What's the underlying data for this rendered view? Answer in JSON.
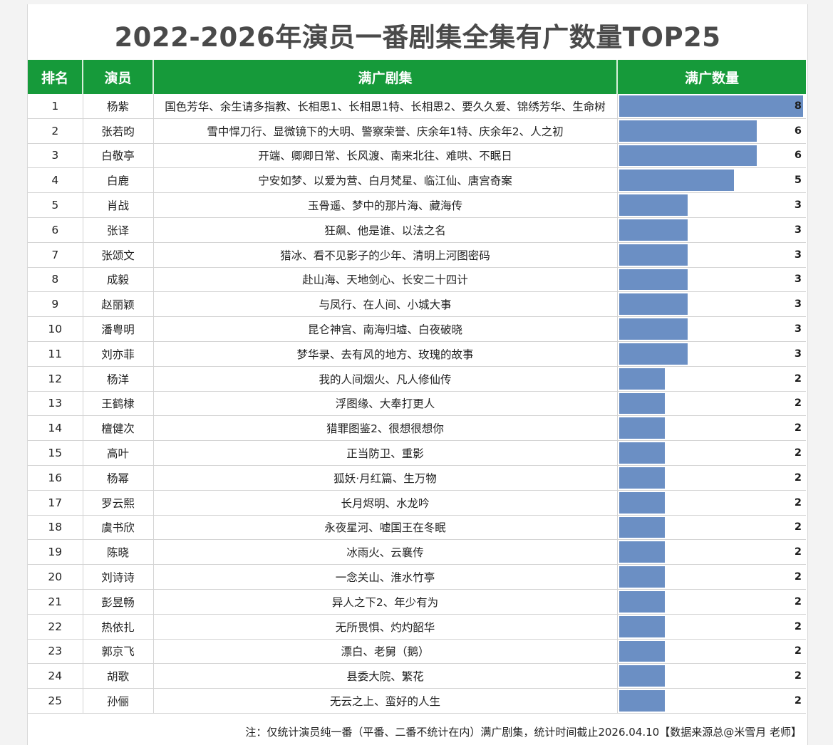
{
  "title": "2022-2026年演员一番剧集全集有广数量TOP25",
  "headers": {
    "rank": "排名",
    "actor": "演员",
    "dramas": "满广剧集",
    "count": "满广数量"
  },
  "colors": {
    "header_bg": "#169a3a",
    "bar": "#6b8fc4"
  },
  "chart_data": {
    "type": "bar",
    "title": "2022-2026年演员一番剧集全集有广数量TOP25",
    "xlim": [
      0,
      8
    ],
    "rows": [
      {
        "rank": "1",
        "actor": "杨紫",
        "dramas": "国色芳华、余生请多指教、长相思1、长相思1特、长相思2、要久久爱、锦绣芳华、生命树",
        "value": 8
      },
      {
        "rank": "2",
        "actor": "张若昀",
        "dramas": "雪中悍刀行、显微镜下的大明、警察荣誉、庆余年1特、庆余年2、人之初",
        "value": 6
      },
      {
        "rank": "3",
        "actor": "白敬亭",
        "dramas": "开端、卿卿日常、长风渡、南来北往、难哄、不眠日",
        "value": 6
      },
      {
        "rank": "4",
        "actor": "白鹿",
        "dramas": "宁安如梦、以爱为营、白月梵星、临江仙、唐宫奇案",
        "value": 5
      },
      {
        "rank": "5",
        "actor": "肖战",
        "dramas": "玉骨遥、梦中的那片海、藏海传",
        "value": 3
      },
      {
        "rank": "6",
        "actor": "张译",
        "dramas": "狂飙、他是谁、以法之名",
        "value": 3
      },
      {
        "rank": "7",
        "actor": "张颂文",
        "dramas": "猎冰、看不见影子的少年、清明上河图密码",
        "value": 3
      },
      {
        "rank": "8",
        "actor": "成毅",
        "dramas": "赴山海、天地剑心、长安二十四计",
        "value": 3
      },
      {
        "rank": "9",
        "actor": "赵丽颖",
        "dramas": "与凤行、在人间、小城大事",
        "value": 3
      },
      {
        "rank": "10",
        "actor": "潘粤明",
        "dramas": "昆仑神宫、南海归墟、白夜破晓",
        "value": 3
      },
      {
        "rank": "11",
        "actor": "刘亦菲",
        "dramas": "梦华录、去有风的地方、玫瑰的故事",
        "value": 3
      },
      {
        "rank": "12",
        "actor": "杨洋",
        "dramas": "我的人间烟火、凡人修仙传",
        "value": 2
      },
      {
        "rank": "13",
        "actor": "王鹤棣",
        "dramas": "浮图缘、大奉打更人",
        "value": 2
      },
      {
        "rank": "14",
        "actor": "檀健次",
        "dramas": "猎罪图鉴2、很想很想你",
        "value": 2
      },
      {
        "rank": "15",
        "actor": "高叶",
        "dramas": "正当防卫、重影",
        "value": 2
      },
      {
        "rank": "16",
        "actor": "杨幂",
        "dramas": "狐妖·月红篇、生万物",
        "value": 2
      },
      {
        "rank": "17",
        "actor": "罗云熙",
        "dramas": "长月烬明、水龙吟",
        "value": 2
      },
      {
        "rank": "18",
        "actor": "虞书欣",
        "dramas": "永夜星河、嘘国王在冬眠",
        "value": 2
      },
      {
        "rank": "19",
        "actor": "陈晓",
        "dramas": "冰雨火、云襄传",
        "value": 2
      },
      {
        "rank": "20",
        "actor": "刘诗诗",
        "dramas": "一念关山、淮水竹亭",
        "value": 2
      },
      {
        "rank": "21",
        "actor": "彭昱畅",
        "dramas": "异人之下2、年少有为",
        "value": 2
      },
      {
        "rank": "22",
        "actor": "热依扎",
        "dramas": "无所畏惧、灼灼韶华",
        "value": 2
      },
      {
        "rank": "23",
        "actor": "郭京飞",
        "dramas": "漂白、老舅（鹅）",
        "value": 2
      },
      {
        "rank": "24",
        "actor": "胡歌",
        "dramas": "县委大院、繁花",
        "value": 2
      },
      {
        "rank": "25",
        "actor": "孙俪",
        "dramas": "无云之上、蛮好的人生",
        "value": 2
      }
    ]
  },
  "note": "注：仅统计演员纯一番（平番、二番不统计在内）满广剧集，统计时间截止2026.04.10【数据来源总@米雪月 老师】"
}
